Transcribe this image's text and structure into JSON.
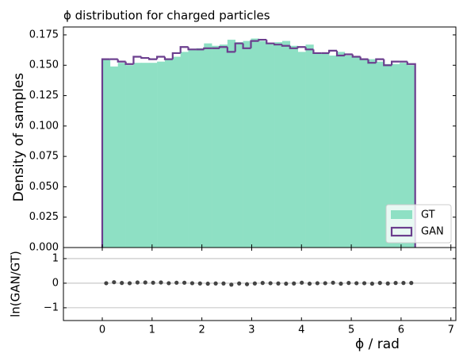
{
  "chart_data": [
    {
      "type": "histogram",
      "title": "ϕ distribution for charged particles",
      "ylabel": "Density of samples",
      "bins": [
        0,
        0.157,
        0.314,
        0.471,
        0.628,
        0.785,
        0.942,
        1.1,
        1.257,
        1.414,
        1.571,
        1.728,
        1.885,
        2.042,
        2.199,
        2.356,
        2.513,
        2.67,
        2.827,
        2.985,
        3.142,
        3.299,
        3.456,
        3.613,
        3.77,
        3.927,
        4.084,
        4.241,
        4.398,
        4.555,
        4.712,
        4.869,
        5.027,
        5.184,
        5.341,
        5.498,
        5.655,
        5.812,
        5.969,
        6.126,
        6.283
      ],
      "series": [
        {
          "name": "GT",
          "color": "#8ee0c4",
          "values": [
            0.155,
            0.149,
            0.152,
            0.15,
            0.152,
            0.152,
            0.152,
            0.153,
            0.155,
            0.157,
            0.161,
            0.163,
            0.164,
            0.168,
            0.166,
            0.167,
            0.171,
            0.169,
            0.17,
            0.172,
            0.17,
            0.168,
            0.169,
            0.17,
            0.166,
            0.161,
            0.167,
            0.16,
            0.16,
            0.158,
            0.161,
            0.158,
            0.157,
            0.155,
            0.155,
            0.153,
            0.151,
            0.151,
            0.152,
            0.15
          ]
        },
        {
          "name": "GAN",
          "color": "#6b3e8e",
          "values": [
            0.155,
            0.155,
            0.153,
            0.151,
            0.157,
            0.156,
            0.155,
            0.157,
            0.155,
            0.16,
            0.165,
            0.163,
            0.163,
            0.164,
            0.164,
            0.165,
            0.161,
            0.168,
            0.164,
            0.17,
            0.171,
            0.168,
            0.167,
            0.166,
            0.164,
            0.165,
            0.163,
            0.16,
            0.16,
            0.162,
            0.158,
            0.159,
            0.157,
            0.155,
            0.152,
            0.155,
            0.15,
            0.153,
            0.153,
            0.151
          ]
        }
      ],
      "xlim": [
        -0.78,
        7.1
      ],
      "ylim": [
        0,
        0.1815
      ],
      "yticks": [
        {
          "value": 0,
          "label": "0.000"
        },
        {
          "value": 0.025,
          "label": "0.025"
        },
        {
          "value": 0.05,
          "label": "0.050"
        },
        {
          "value": 0.075,
          "label": "0.075"
        },
        {
          "value": 0.1,
          "label": "0.100"
        },
        {
          "value": 0.125,
          "label": "0.125"
        },
        {
          "value": 0.15,
          "label": "0.150"
        },
        {
          "value": 0.175,
          "label": "0.175"
        }
      ],
      "legend": "lower right"
    },
    {
      "type": "scatter",
      "xlabel": "ϕ / rad",
      "ylabel": "ln(GAN/GT)",
      "color": "#444444",
      "x": [
        0.079,
        0.236,
        0.393,
        0.55,
        0.707,
        0.864,
        1.021,
        1.178,
        1.335,
        1.492,
        1.649,
        1.806,
        1.963,
        2.12,
        2.278,
        2.435,
        2.592,
        2.749,
        2.906,
        3.063,
        3.22,
        3.377,
        3.534,
        3.691,
        3.848,
        4.006,
        4.163,
        4.32,
        4.477,
        4.634,
        4.791,
        4.948,
        5.105,
        5.262,
        5.419,
        5.576,
        5.734,
        5.891,
        6.048,
        6.205
      ],
      "values": [
        0.0,
        0.04,
        0.01,
        0.0,
        0.03,
        0.03,
        0.02,
        0.03,
        0.0,
        0.02,
        0.02,
        0.0,
        -0.01,
        -0.02,
        -0.01,
        -0.01,
        -0.06,
        -0.01,
        -0.04,
        -0.01,
        0.01,
        0.0,
        -0.01,
        -0.02,
        -0.01,
        0.02,
        -0.02,
        0.0,
        0.0,
        0.02,
        -0.02,
        0.01,
        0.0,
        0.0,
        -0.02,
        0.01,
        -0.01,
        0.01,
        0.01,
        0.01
      ],
      "xlim": [
        -0.78,
        7.1
      ],
      "xticks": [
        0,
        1,
        2,
        3,
        4,
        5,
        6,
        7
      ],
      "ylim": [
        -1.52,
        1.45
      ],
      "yticks": [
        {
          "value": -1,
          "label": "−1"
        },
        0,
        1
      ],
      "grid": true
    }
  ]
}
